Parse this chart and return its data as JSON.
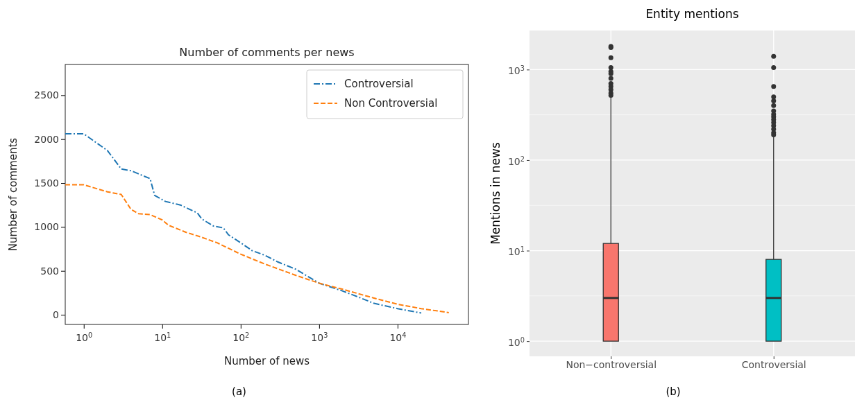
{
  "chart_data": [
    {
      "type": "line",
      "title": "Number of comments per news",
      "xlabel": "Number of news",
      "ylabel": "Number of comments",
      "log": "x",
      "xlim": [
        0.58,
        80000
      ],
      "xticks": [
        {
          "value": 1,
          "label": "10$^{0}$"
        },
        {
          "value": 10,
          "label": "10$^{1}$"
        },
        {
          "value": 100,
          "label": "10$^{2}$"
        },
        {
          "value": 1000,
          "label": "10$^{3}$"
        },
        {
          "value": 10000,
          "label": "10$^{4}$"
        }
      ],
      "ylim": [
        -110,
        2850
      ],
      "yticks": [
        0,
        500,
        1000,
        1500,
        2000,
        2500
      ],
      "grid": false,
      "legend": "top right",
      "annotations": [
        "(a)"
      ],
      "series": [
        {
          "name": "Controversial",
          "color": "#1f77b4",
          "line_style": "dashdot",
          "x": [
            0.58,
            1,
            2,
            3,
            4,
            7,
            8,
            11,
            17,
            25,
            28,
            32,
            45,
            60,
            70,
            100,
            140,
            200,
            300,
            500,
            1000,
            2000,
            3000,
            5000,
            10000,
            20000
          ],
          "values": [
            2060,
            2060,
            1870,
            1660,
            1640,
            1550,
            1360,
            1290,
            1250,
            1180,
            1160,
            1090,
            1010,
            990,
            910,
            820,
            730,
            680,
            600,
            520,
            360,
            270,
            210,
            130,
            70,
            20
          ]
        },
        {
          "name": "Non Controversial",
          "color": "#ff7f0e",
          "line_style": "dashed",
          "x": [
            0.58,
            1,
            2,
            3,
            4,
            5,
            7,
            10,
            12,
            20,
            30,
            50,
            100,
            200,
            500,
            1000,
            2000,
            5000,
            10000,
            20000,
            45000
          ],
          "values": [
            1480,
            1480,
            1400,
            1370,
            1200,
            1150,
            1140,
            1080,
            1020,
            940,
            890,
            820,
            690,
            580,
            450,
            360,
            290,
            190,
            120,
            70,
            25
          ]
        }
      ]
    },
    {
      "type": "box",
      "title": "Entity mentions",
      "ylabel": "Mentions in news",
      "log": "y",
      "categories": [
        "Non−controversial",
        "Controversial"
      ],
      "ylim": [
        0.68,
        2700
      ],
      "yticks": [
        {
          "value": 1,
          "label": "10$^{0}$"
        },
        {
          "value": 10,
          "label": "10$^{1}$"
        },
        {
          "value": 100,
          "label": "10$^{2}$"
        },
        {
          "value": 1000,
          "label": "10$^{3}$"
        }
      ],
      "grid": true,
      "colors": [
        "#f8766d",
        "#00bfc4"
      ],
      "annotations": [
        "(b)"
      ],
      "boxes": [
        {
          "low": 1,
          "q1": 1,
          "median": 3,
          "q3": 12,
          "high": 500,
          "outliers": [
            1800,
            1750,
            1350,
            1050,
            950,
            900,
            800,
            700,
            650,
            600,
            550,
            520
          ]
        },
        {
          "low": 1,
          "q1": 1,
          "median": 3,
          "q3": 8,
          "high": 180,
          "outliers": [
            1400,
            1050,
            650,
            500,
            450,
            400,
            350,
            320,
            300,
            280,
            260,
            240,
            220,
            200,
            190
          ]
        }
      ]
    }
  ]
}
